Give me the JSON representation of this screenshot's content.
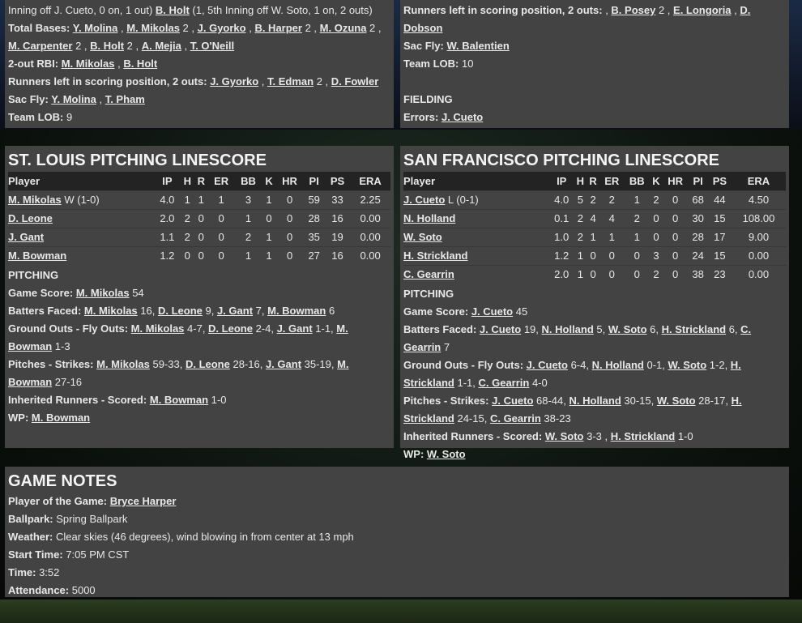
{
  "stl_batting": [
    {
      "label": "",
      "segs": [
        {
          "t": "Inning off J. Cueto, 0 on, 1 out) "
        },
        {
          "t": "B. Holt",
          "l": 1
        },
        {
          "t": " (1, 5th Inning off W. Soto, 1 on, 2 outs)"
        }
      ]
    },
    {
      "label": "Total Bases: ",
      "segs": [
        {
          "t": "Y. Molina",
          "l": 1
        },
        {
          "t": " , "
        },
        {
          "t": "M. Mikolas",
          "l": 1
        },
        {
          "t": " 2 , "
        },
        {
          "t": "J. Gyorko",
          "l": 1
        },
        {
          "t": " , "
        },
        {
          "t": "B. Harper",
          "l": 1
        },
        {
          "t": " 2 , "
        },
        {
          "t": "M. Ozuna",
          "l": 1
        },
        {
          "t": " 2 , "
        },
        {
          "t": "M. Carpenter",
          "l": 1
        },
        {
          "t": " 2 , "
        },
        {
          "t": "B. Holt",
          "l": 1
        },
        {
          "t": " 2 , "
        },
        {
          "t": "A. Mejia",
          "l": 1
        },
        {
          "t": " , "
        },
        {
          "t": "T. O'Neill",
          "l": 1
        }
      ]
    },
    {
      "label": "2-out RBI: ",
      "segs": [
        {
          "t": "M. Mikolas",
          "l": 1
        },
        {
          "t": " , "
        },
        {
          "t": "B. Holt",
          "l": 1
        }
      ]
    },
    {
      "label": "Runners left in scoring position, 2 outs: ",
      "segs": [
        {
          "t": "J. Gyorko",
          "l": 1
        },
        {
          "t": " , "
        },
        {
          "t": "T. Edman",
          "l": 1
        },
        {
          "t": " 2 , "
        },
        {
          "t": "D. Fowler",
          "l": 1
        }
      ]
    },
    {
      "label": "Sac Fly: ",
      "segs": [
        {
          "t": "Y. Molina",
          "l": 1
        },
        {
          "t": " , "
        },
        {
          "t": "T. Pham",
          "l": 1
        }
      ]
    },
    {
      "label": "Team LOB: ",
      "segs": [
        {
          "t": " 9"
        }
      ]
    }
  ],
  "sf_batting": [
    {
      "label": "Runners left in scoring position, 2 outs: ",
      "segs": [
        {
          "t": " , "
        },
        {
          "t": "B. Posey",
          "l": 1
        },
        {
          "t": " 2 , "
        },
        {
          "t": "E. Longoria",
          "l": 1
        },
        {
          "t": " , "
        },
        {
          "t": "D. Dobson",
          "l": 1
        }
      ]
    },
    {
      "label": "Sac Fly: ",
      "segs": [
        {
          "t": "W. Balentien",
          "l": 1
        }
      ]
    },
    {
      "label": "Team LOB: ",
      "segs": [
        {
          "t": " 10"
        }
      ]
    },
    {
      "label": "",
      "segs": [
        {
          "t": " "
        }
      ]
    },
    {
      "label": "FIELDING",
      "segs": []
    },
    {
      "label": "Errors: ",
      "segs": [
        {
          "t": "J. Cueto",
          "l": 1
        }
      ]
    }
  ],
  "columns": [
    "Player",
    "IP",
    "H",
    "R",
    "ER",
    "BB",
    "K",
    "HR",
    "PI",
    "PS",
    "ERA"
  ],
  "stl_pitching": {
    "title": "ST. LOUIS PITCHING LINESCORE",
    "rows": [
      {
        "player": "M. Mikolas",
        "dec": " W (1-0)",
        "stats": [
          "4.0",
          "1",
          "1",
          "1",
          "3",
          "1",
          "0",
          "59",
          "33",
          "2.25"
        ]
      },
      {
        "player": "D. Leone",
        "dec": "",
        "stats": [
          "2.0",
          "2",
          "0",
          "0",
          "1",
          "0",
          "0",
          "28",
          "16",
          "0.00"
        ]
      },
      {
        "player": "J. Gant",
        "dec": "",
        "stats": [
          "1.1",
          "2",
          "0",
          "0",
          "2",
          "1",
          "0",
          "35",
          "19",
          "0.00"
        ]
      },
      {
        "player": "M. Bowman",
        "dec": "",
        "stats": [
          "1.2",
          "0",
          "0",
          "0",
          "1",
          "1",
          "0",
          "27",
          "16",
          "0.00"
        ]
      }
    ],
    "section": "PITCHING",
    "notes": [
      {
        "label": "Game Score: ",
        "segs": [
          {
            "t": "M. Mikolas",
            "l": 1
          },
          {
            "t": " 54"
          }
        ]
      },
      {
        "label": "Batters Faced: ",
        "segs": [
          {
            "t": "M. Mikolas",
            "l": 1
          },
          {
            "t": " 16, "
          },
          {
            "t": "D. Leone",
            "l": 1
          },
          {
            "t": " 9, "
          },
          {
            "t": "J. Gant",
            "l": 1
          },
          {
            "t": " 7, "
          },
          {
            "t": "M. Bowman",
            "l": 1
          },
          {
            "t": " 6"
          }
        ]
      },
      {
        "label": "Ground Outs - Fly Outs: ",
        "segs": [
          {
            "t": "M. Mikolas",
            "l": 1
          },
          {
            "t": " 4-7, "
          },
          {
            "t": "D. Leone",
            "l": 1
          },
          {
            "t": " 2-4, "
          },
          {
            "t": "J. Gant",
            "l": 1
          },
          {
            "t": " 1-1, "
          },
          {
            "t": "M. Bowman",
            "l": 1
          },
          {
            "t": " 1-3"
          }
        ]
      },
      {
        "label": "Pitches - Strikes: ",
        "segs": [
          {
            "t": "M. Mikolas",
            "l": 1
          },
          {
            "t": " 59-33, "
          },
          {
            "t": "D. Leone",
            "l": 1
          },
          {
            "t": " 28-16, "
          },
          {
            "t": "J. Gant",
            "l": 1
          },
          {
            "t": " 35-19, "
          },
          {
            "t": "M. Bowman",
            "l": 1
          },
          {
            "t": " 27-16"
          }
        ]
      },
      {
        "label": "Inherited Runners - Scored: ",
        "segs": [
          {
            "t": "M. Bowman",
            "l": 1
          },
          {
            "t": " 1-0"
          }
        ]
      },
      {
        "label": "WP: ",
        "segs": [
          {
            "t": "M. Bowman",
            "l": 1
          }
        ]
      }
    ]
  },
  "sf_pitching": {
    "title": "SAN FRANCISCO PITCHING LINESCORE",
    "rows": [
      {
        "player": "J. Cueto",
        "dec": " L (0-1)",
        "stats": [
          "4.0",
          "5",
          "2",
          "2",
          "1",
          "2",
          "0",
          "68",
          "44",
          "4.50"
        ]
      },
      {
        "player": "N. Holland",
        "dec": "",
        "stats": [
          "0.1",
          "2",
          "4",
          "4",
          "2",
          "0",
          "0",
          "30",
          "15",
          "108.00"
        ]
      },
      {
        "player": "W. Soto",
        "dec": "",
        "stats": [
          "1.0",
          "2",
          "1",
          "1",
          "1",
          "0",
          "0",
          "28",
          "17",
          "9.00"
        ]
      },
      {
        "player": "H. Strickland",
        "dec": "",
        "stats": [
          "1.2",
          "1",
          "0",
          "0",
          "0",
          "3",
          "0",
          "24",
          "15",
          "0.00"
        ]
      },
      {
        "player": "C. Gearrin",
        "dec": "",
        "stats": [
          "2.0",
          "1",
          "0",
          "0",
          "0",
          "2",
          "0",
          "38",
          "23",
          "0.00"
        ]
      }
    ],
    "section": "PITCHING",
    "notes": [
      {
        "label": "Game Score: ",
        "segs": [
          {
            "t": "J. Cueto",
            "l": 1
          },
          {
            "t": " 45"
          }
        ]
      },
      {
        "label": "Batters Faced: ",
        "segs": [
          {
            "t": "J. Cueto",
            "l": 1
          },
          {
            "t": " 19, "
          },
          {
            "t": "N. Holland",
            "l": 1
          },
          {
            "t": " 5, "
          },
          {
            "t": "W. Soto",
            "l": 1
          },
          {
            "t": " 6, "
          },
          {
            "t": "H. Strickland",
            "l": 1
          },
          {
            "t": " 6, "
          },
          {
            "t": "C. Gearrin",
            "l": 1
          },
          {
            "t": " 7"
          }
        ]
      },
      {
        "label": "Ground Outs - Fly Outs: ",
        "segs": [
          {
            "t": "J. Cueto",
            "l": 1
          },
          {
            "t": " 6-4, "
          },
          {
            "t": "N. Holland",
            "l": 1
          },
          {
            "t": " 0-1, "
          },
          {
            "t": "W. Soto",
            "l": 1
          },
          {
            "t": " 1-2, "
          },
          {
            "t": "H. Strickland",
            "l": 1
          },
          {
            "t": " 1-1, "
          },
          {
            "t": "C. Gearrin",
            "l": 1
          },
          {
            "t": " 4-0"
          }
        ]
      },
      {
        "label": "Pitches - Strikes: ",
        "segs": [
          {
            "t": "J. Cueto",
            "l": 1
          },
          {
            "t": " 68-44, "
          },
          {
            "t": "N. Holland",
            "l": 1
          },
          {
            "t": " 30-15, "
          },
          {
            "t": "W. Soto",
            "l": 1
          },
          {
            "t": " 28-17, "
          },
          {
            "t": "H. Strickland",
            "l": 1
          },
          {
            "t": " 24-15, "
          },
          {
            "t": "C. Gearrin",
            "l": 1
          },
          {
            "t": " 38-23"
          }
        ]
      },
      {
        "label": "Inherited Runners - Scored: ",
        "segs": [
          {
            "t": "W. Soto",
            "l": 1
          },
          {
            "t": " 3-3 , "
          },
          {
            "t": "H. Strickland",
            "l": 1
          },
          {
            "t": " 1-0"
          }
        ]
      },
      {
        "label": "WP: ",
        "segs": [
          {
            "t": "W. Soto",
            "l": 1
          }
        ]
      }
    ]
  },
  "game_notes": {
    "title": "GAME NOTES",
    "lines": [
      {
        "label": "Player of the Game: ",
        "segs": [
          {
            "t": "Bryce Harper",
            "l": 1
          }
        ]
      },
      {
        "label": "Ballpark: ",
        "segs": [
          {
            "t": " Spring Ballpark"
          }
        ]
      },
      {
        "label": "Weather: ",
        "segs": [
          {
            "t": " Clear skies (46 degrees), wind blowing in from center at 13 mph"
          }
        ]
      },
      {
        "label": "Start Time: ",
        "segs": [
          {
            "t": " 7:05 PM CST"
          }
        ]
      },
      {
        "label": "Time: ",
        "segs": [
          {
            "t": " 3:52"
          }
        ]
      },
      {
        "label": "Attendance: ",
        "segs": [
          {
            "t": " 5000"
          }
        ]
      }
    ]
  }
}
